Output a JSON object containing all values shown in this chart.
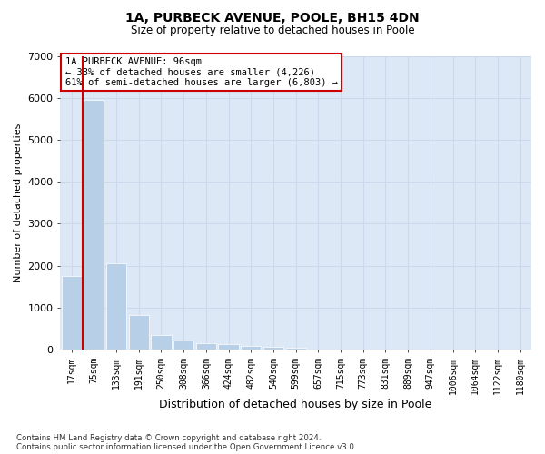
{
  "title1": "1A, PURBECK AVENUE, POOLE, BH15 4DN",
  "title2": "Size of property relative to detached houses in Poole",
  "xlabel": "Distribution of detached houses by size in Poole",
  "ylabel": "Number of detached properties",
  "footnote1": "Contains HM Land Registry data © Crown copyright and database right 2024.",
  "footnote2": "Contains public sector information licensed under the Open Government Licence v3.0.",
  "bar_color": "#b8cfe8",
  "grid_color": "#ccd8ec",
  "background_color": "#dce8f5",
  "property_line_color": "#cc0000",
  "annotation_box_edge": "#cc0000",
  "annotation_line1": "1A PURBECK AVENUE: 96sqm",
  "annotation_line2": "← 38% of detached houses are smaller (4,226)",
  "annotation_line3": "61% of semi-detached houses are larger (6,803) →",
  "property_line_x": 0.5,
  "categories": [
    "17sqm",
    "75sqm",
    "133sqm",
    "191sqm",
    "250sqm",
    "308sqm",
    "366sqm",
    "424sqm",
    "482sqm",
    "540sqm",
    "599sqm",
    "657sqm",
    "715sqm",
    "773sqm",
    "831sqm",
    "889sqm",
    "947sqm",
    "1006sqm",
    "1064sqm",
    "1122sqm",
    "1180sqm"
  ],
  "values": [
    1750,
    5950,
    2050,
    820,
    360,
    225,
    165,
    130,
    100,
    62,
    42,
    0,
    0,
    0,
    0,
    0,
    0,
    0,
    0,
    0,
    0
  ],
  "ylim_max": 7000,
  "yticks": [
    0,
    1000,
    2000,
    3000,
    4000,
    5000,
    6000,
    7000
  ]
}
